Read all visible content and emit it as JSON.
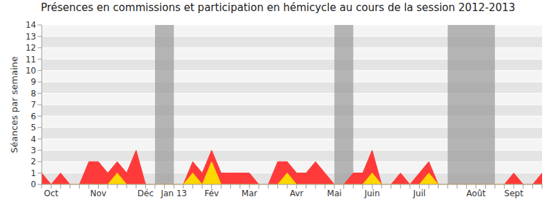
{
  "chart_data": {
    "type": "area",
    "title": "Présences en commissions et participation en hémicycle au cours de la session 2012-2013",
    "y_label": "Séances par semaine",
    "categories": [
      null,
      "Oct",
      null,
      null,
      null,
      null,
      "Nov",
      null,
      null,
      null,
      null,
      "Déc",
      null,
      null,
      "Jan 13",
      null,
      null,
      null,
      "Fév",
      null,
      null,
      null,
      "Mar",
      null,
      null,
      null,
      null,
      "Avr",
      null,
      null,
      null,
      "Mai",
      null,
      null,
      null,
      "Juin",
      null,
      null,
      null,
      null,
      "Juil",
      null,
      null,
      null,
      null,
      null,
      "Août",
      null,
      null,
      null,
      "Sept",
      null,
      null,
      null
    ],
    "series": [
      {
        "color": "#ff3a3a",
        "values": [
          1,
          0,
          1,
          0,
          0,
          2,
          2,
          1,
          2,
          1,
          3,
          0,
          0,
          0,
          0,
          0,
          2,
          1,
          3,
          1,
          1,
          1,
          1,
          0,
          0,
          2,
          2,
          1,
          1,
          2,
          1,
          0,
          0,
          1,
          1,
          3,
          0,
          0,
          1,
          0,
          1,
          2,
          0,
          0,
          0,
          0,
          0,
          0,
          0,
          0,
          1,
          0,
          0,
          1
        ]
      },
      {
        "color": "#ffd700",
        "values": [
          0,
          0,
          0,
          0,
          0,
          0,
          0,
          0,
          1,
          0,
          0,
          0,
          0,
          0,
          0,
          0,
          1,
          0,
          2,
          0,
          0,
          0,
          0,
          0,
          0,
          0,
          1,
          0,
          0,
          0,
          0,
          0,
          0,
          0,
          0,
          1,
          0,
          0,
          0,
          0,
          0,
          1,
          0,
          0,
          0,
          0,
          0,
          0,
          0,
          0,
          0,
          0,
          0,
          0
        ]
      }
    ],
    "shaded_periods": [
      [
        12,
        14
      ],
      [
        31,
        33
      ],
      [
        43,
        48
      ]
    ],
    "ylim": [
      0,
      14
    ],
    "yticks": [
      0,
      1,
      2,
      3,
      4,
      5,
      6,
      7,
      8,
      9,
      10,
      11,
      12,
      13,
      14
    ],
    "grid": true
  }
}
